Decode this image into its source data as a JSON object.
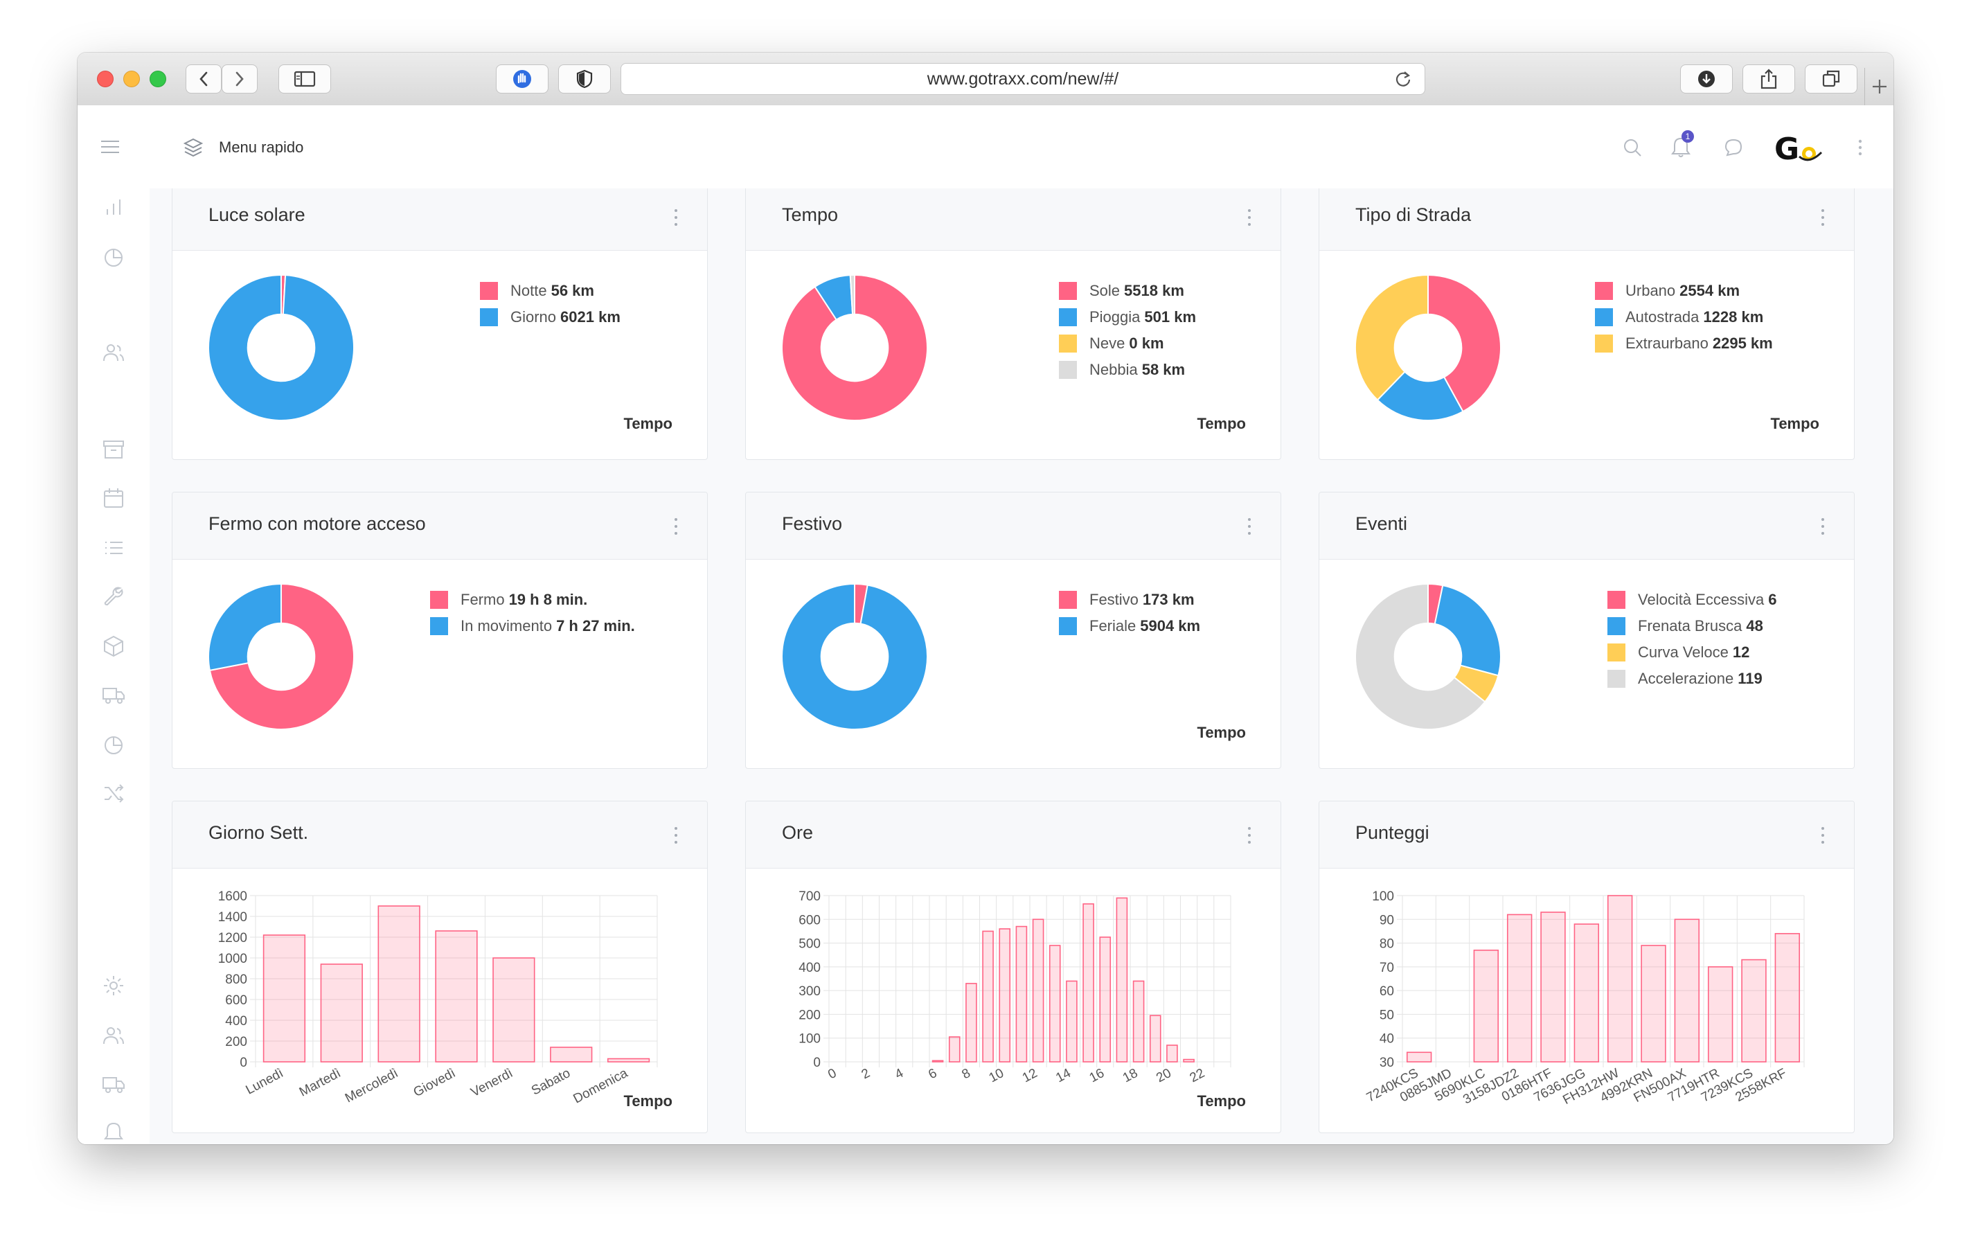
{
  "browser": {
    "url": "www.gotraxx.com/new/#/"
  },
  "header": {
    "quick_menu": "Menu rapido",
    "notification_count": "1",
    "logo_text": "G"
  },
  "colors": {
    "pink": "#ff6384",
    "blue": "#36a2eb",
    "yellow": "#ffce56",
    "grey": "#dcdcdc",
    "bar_fill": "rgba(255,99,132,0.2)",
    "bar_stroke": "#ff6384"
  },
  "cards": {
    "luce": {
      "title": "Luce solare",
      "footer": "Tempo",
      "legend": [
        {
          "label": "Notte",
          "value": "56 km"
        },
        {
          "label": "Giorno",
          "value": "6021 km"
        }
      ]
    },
    "tempo": {
      "title": "Tempo",
      "footer": "Tempo",
      "legend": [
        {
          "label": "Sole",
          "value": "5518 km"
        },
        {
          "label": "Pioggia",
          "value": "501 km"
        },
        {
          "label": "Neve",
          "value": "0 km"
        },
        {
          "label": "Nebbia",
          "value": "58 km"
        }
      ]
    },
    "strada": {
      "title": "Tipo di Strada",
      "footer": "Tempo",
      "legend": [
        {
          "label": "Urbano",
          "value": "2554 km"
        },
        {
          "label": "Autostrada",
          "value": "1228 km"
        },
        {
          "label": "Extraurbano",
          "value": "2295 km"
        }
      ]
    },
    "fermo": {
      "title": "Fermo con motore acceso",
      "footer": "",
      "legend": [
        {
          "label": "Fermo",
          "value": "19 h 8 min."
        },
        {
          "label": "In movimento",
          "value": "7 h 27 min."
        }
      ]
    },
    "festivo": {
      "title": "Festivo",
      "footer": "Tempo",
      "legend": [
        {
          "label": "Festivo",
          "value": "173 km"
        },
        {
          "label": "Feriale",
          "value": "5904 km"
        }
      ]
    },
    "eventi": {
      "title": "Eventi",
      "footer": "",
      "legend": [
        {
          "label": "Velocità Eccessiva",
          "value": "6"
        },
        {
          "label": "Frenata Brusca",
          "value": "48"
        },
        {
          "label": "Curva Veloce",
          "value": "12"
        },
        {
          "label": "Accelerazione",
          "value": "119"
        }
      ]
    },
    "giorno": {
      "title": "Giorno Sett.",
      "footer": "Tempo"
    },
    "ore": {
      "title": "Ore",
      "footer": "Tempo"
    },
    "punteggi": {
      "title": "Punteggi",
      "footer": ""
    }
  },
  "chart_data": [
    {
      "id": "luce",
      "type": "pie",
      "title": "Luce solare",
      "labels": [
        "Notte",
        "Giorno"
      ],
      "values": [
        56,
        6021
      ],
      "colors": [
        "#ff6384",
        "#36a2eb"
      ]
    },
    {
      "id": "tempo",
      "type": "pie",
      "title": "Tempo",
      "labels": [
        "Sole",
        "Pioggia",
        "Neve",
        "Nebbia"
      ],
      "values": [
        5518,
        501,
        0,
        58
      ],
      "colors": [
        "#ff6384",
        "#36a2eb",
        "#ffce56",
        "#dcdcdc"
      ]
    },
    {
      "id": "strada",
      "type": "pie",
      "title": "Tipo di Strada",
      "labels": [
        "Urbano",
        "Autostrada",
        "Extraurbano"
      ],
      "values": [
        2554,
        1228,
        2295
      ],
      "colors": [
        "#ff6384",
        "#36a2eb",
        "#ffce56"
      ]
    },
    {
      "id": "fermo",
      "type": "pie",
      "title": "Fermo con motore acceso",
      "labels": [
        "Fermo",
        "In movimento"
      ],
      "values": [
        1148,
        447
      ],
      "colors": [
        "#ff6384",
        "#36a2eb"
      ]
    },
    {
      "id": "festivo",
      "type": "pie",
      "title": "Festivo",
      "labels": [
        "Festivo",
        "Feriale"
      ],
      "values": [
        173,
        5904
      ],
      "colors": [
        "#ff6384",
        "#36a2eb"
      ]
    },
    {
      "id": "eventi",
      "type": "pie",
      "title": "Eventi",
      "labels": [
        "Velocità Eccessiva",
        "Frenata Brusca",
        "Curva Veloce",
        "Accelerazione"
      ],
      "values": [
        6,
        48,
        12,
        119
      ],
      "colors": [
        "#ff6384",
        "#36a2eb",
        "#ffce56",
        "#dcdcdc"
      ]
    },
    {
      "id": "giorno",
      "type": "bar",
      "title": "Giorno Sett.",
      "categories": [
        "Lunedì",
        "Martedì",
        "Mercoledì",
        "Giovedì",
        "Venerdì",
        "Sabato",
        "Domenica"
      ],
      "values": [
        1220,
        940,
        1500,
        1260,
        1000,
        140,
        30
      ],
      "ylim": [
        0,
        1600
      ],
      "yticks": [
        0,
        200,
        400,
        600,
        800,
        1000,
        1200,
        1400,
        1600
      ],
      "grid": true
    },
    {
      "id": "ore",
      "type": "bar",
      "title": "Ore",
      "categories": [
        "0",
        "1",
        "2",
        "3",
        "4",
        "5",
        "6",
        "7",
        "8",
        "9",
        "10",
        "11",
        "12",
        "13",
        "14",
        "15",
        "16",
        "17",
        "18",
        "19",
        "20",
        "21",
        "22",
        "23"
      ],
      "tick_labels": [
        "0",
        "",
        "2",
        "",
        "4",
        "",
        "6",
        "",
        "8",
        "",
        "10",
        "",
        "12",
        "",
        "14",
        "",
        "16",
        "",
        "18",
        "",
        "20",
        "",
        "22",
        ""
      ],
      "values": [
        0,
        0,
        0,
        0,
        0,
        0,
        5,
        105,
        330,
        550,
        560,
        570,
        600,
        490,
        340,
        665,
        525,
        690,
        340,
        195,
        70,
        10,
        0,
        0
      ],
      "ylim": [
        0,
        700
      ],
      "yticks": [
        0,
        100,
        200,
        300,
        400,
        500,
        600,
        700
      ],
      "grid": true
    },
    {
      "id": "punteggi",
      "type": "bar",
      "title": "Punteggi",
      "categories": [
        "7240KCS",
        "0885JMD",
        "5690KLC",
        "3158JDZ2",
        "0186HTF",
        "7636JGG",
        "FH312HW",
        "4992KRN",
        "FN500AX",
        "7719HTR",
        "7239KCS",
        "2558KRF"
      ],
      "values": [
        34,
        28,
        77,
        92,
        93,
        88,
        100,
        79,
        90,
        70,
        73,
        84
      ],
      "ylim": [
        30,
        100
      ],
      "yticks": [
        30,
        40,
        50,
        60,
        70,
        80,
        90,
        100
      ],
      "grid": true
    }
  ]
}
